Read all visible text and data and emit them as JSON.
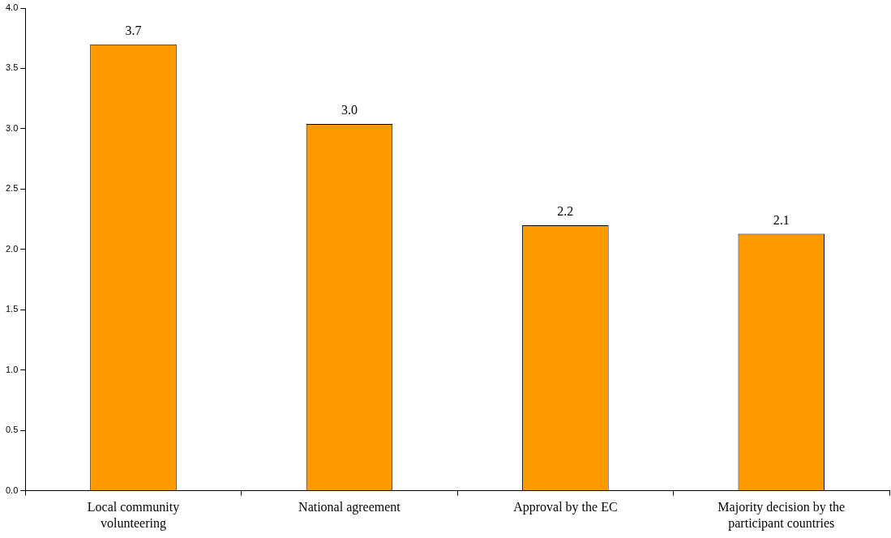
{
  "chart_data": {
    "type": "bar",
    "categories": [
      "Local community volunteering",
      "National agreement",
      "Approval by the EC",
      "Majority decision by the participant countries"
    ],
    "values": [
      3.7,
      3.04,
      2.2,
      2.13
    ],
    "value_labels": [
      "3.7",
      "3.0",
      "2.2",
      "2.1"
    ],
    "color": "#ff9900",
    "ylim": [
      0,
      4
    ],
    "yticks": [
      {
        "value": 0,
        "label": "0.0"
      },
      {
        "value": 0.5,
        "label": "0.5"
      },
      {
        "value": 1,
        "label": "1.0"
      },
      {
        "value": 1.5,
        "label": "1.5"
      },
      {
        "value": 2,
        "label": "2.0"
      },
      {
        "value": 2.5,
        "label": "2.5"
      },
      {
        "value": 3,
        "label": "3.0"
      },
      {
        "value": 3.5,
        "label": "3.5"
      },
      {
        "value": 4,
        "label": "4.0"
      }
    ],
    "grid": false,
    "legend": false
  }
}
